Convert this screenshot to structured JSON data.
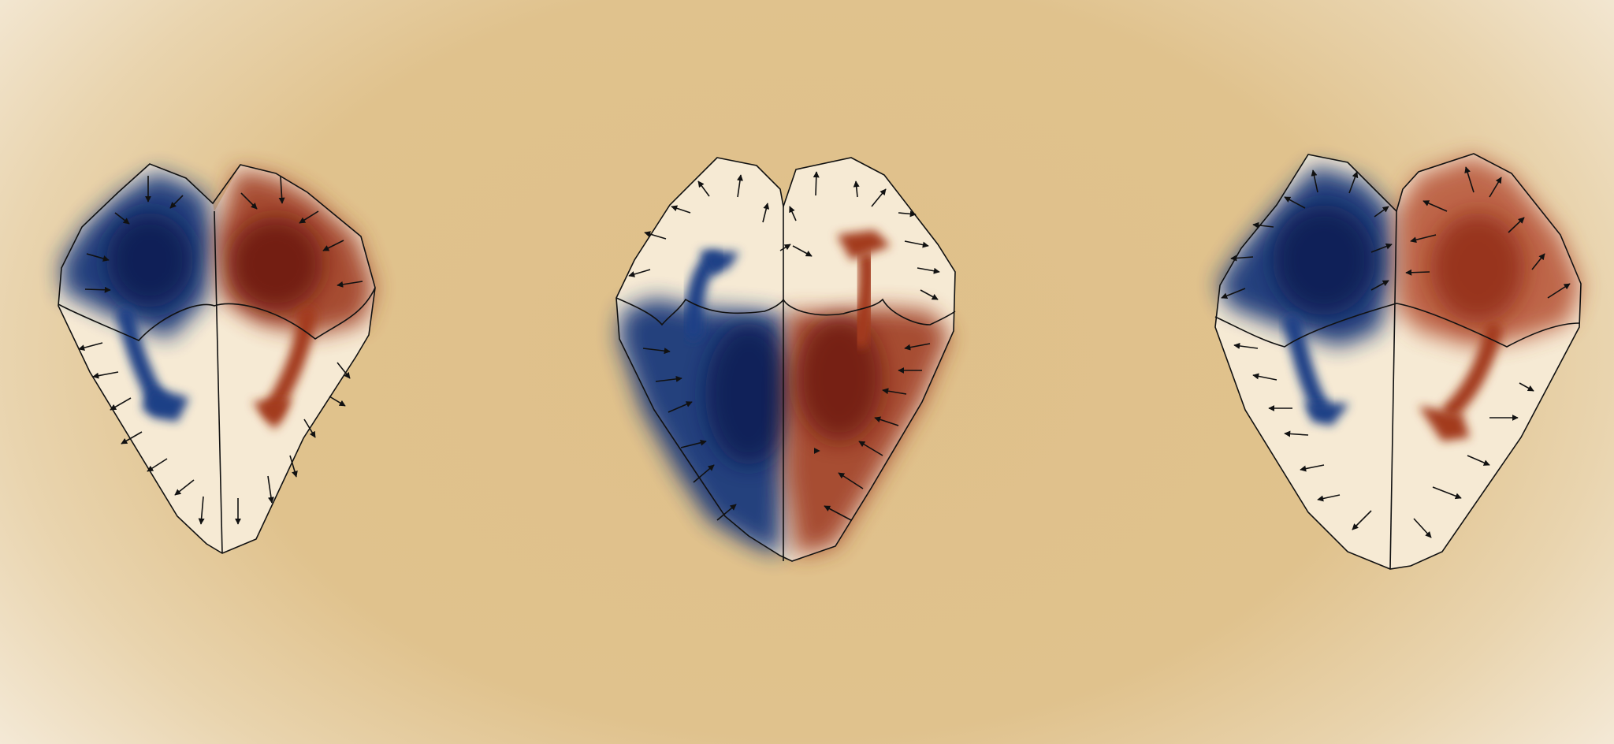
{
  "panels": [
    {
      "id": "left",
      "top_lobes": [
        "blue",
        "red"
      ],
      "bottom_lobes": [],
      "flow_direction": "down",
      "edge_arrows": "inward-top-outward-bottom"
    },
    {
      "id": "middle",
      "top_lobes": [],
      "bottom_lobes": [
        "blue",
        "red"
      ],
      "flow_direction": "up",
      "edge_arrows": "outward-top-inward-bottom"
    },
    {
      "id": "right",
      "top_lobes": [
        "blue",
        "red"
      ],
      "bottom_lobes": [],
      "flow_direction": "down",
      "edge_arrows": "outward-all"
    }
  ],
  "colors": {
    "blue": "#0e2a66",
    "red": "#8e2a14",
    "outline": "#111111",
    "fill": "#f6ead4"
  }
}
